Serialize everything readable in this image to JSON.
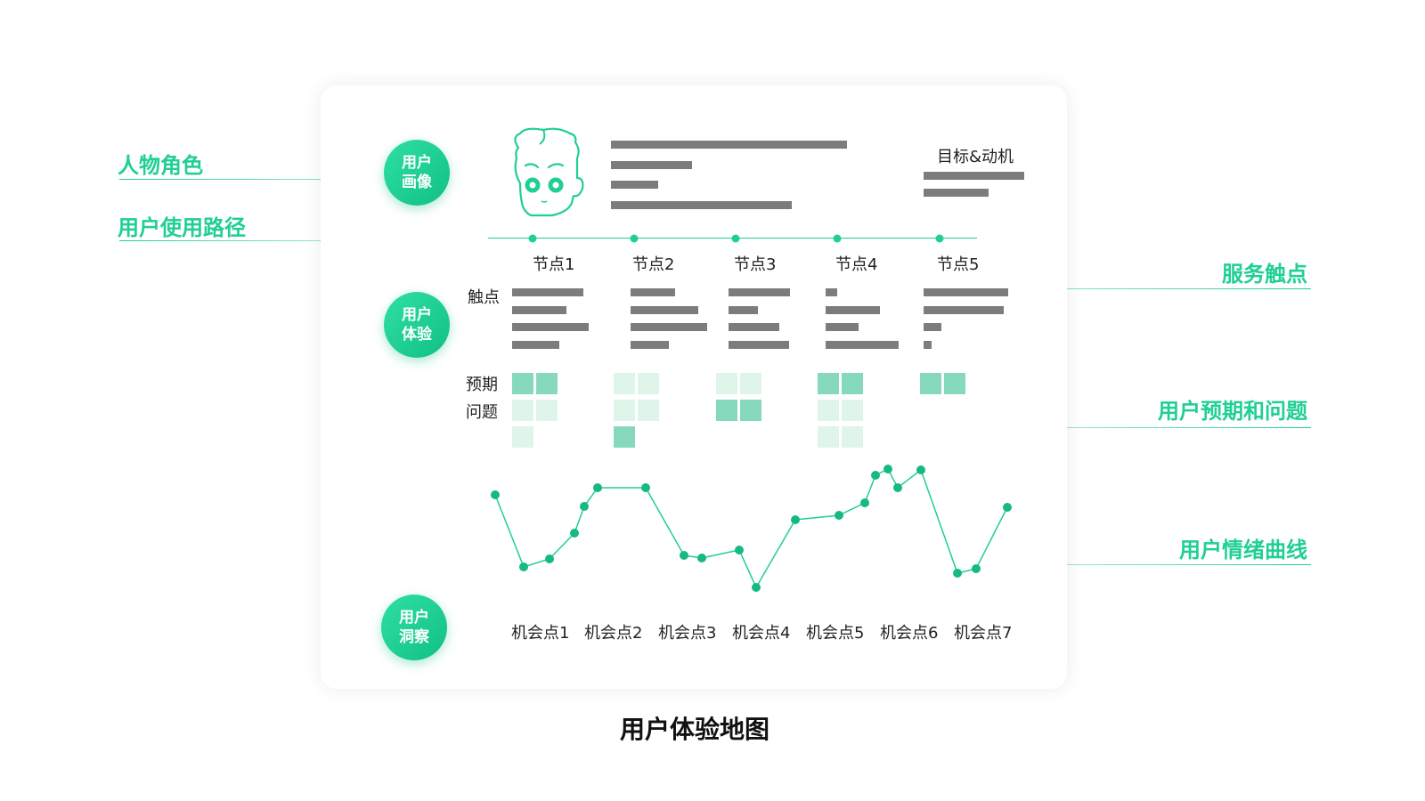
{
  "left_labels": {
    "persona": "人物角色",
    "usage_path": "用户使用路径"
  },
  "right_labels": {
    "touchpoint": "服务触点",
    "expectation": "用户预期和问题",
    "emotion": "用户情绪曲线"
  },
  "badges": {
    "portrait": [
      "用户",
      "画像"
    ],
    "experience": [
      "用户",
      "体验"
    ],
    "insight": [
      "用户",
      "洞察"
    ]
  },
  "goal_label": "目标&动机",
  "nodes": [
    "节点1",
    "节点2",
    "节点3",
    "节点4",
    "节点5"
  ],
  "row_labels": {
    "touchpoint": "触点",
    "expectation": "预期",
    "problem": "问题"
  },
  "opportunities": [
    "机会点1",
    "机会点2",
    "机会点3",
    "机会点4",
    "机会点5",
    "机会点6",
    "机会点7"
  ],
  "caption": "用户体验地图",
  "colors": {
    "accent": "#1fcf95",
    "bar": "#7c7c7c",
    "sq_dark": "#87d9bd",
    "sq_light": "#dff5ea"
  },
  "icons": {
    "avatar": "cartoon-face-icon"
  }
}
